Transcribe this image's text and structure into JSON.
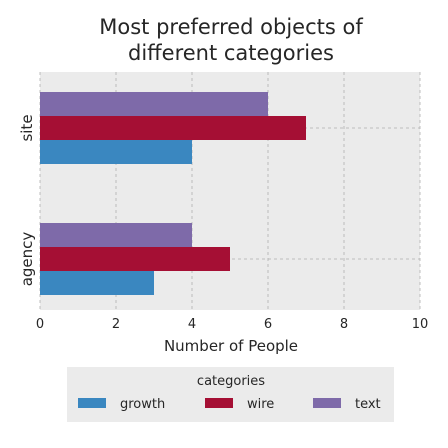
{
  "chart_data": {
    "type": "bar",
    "orientation": "horizontal",
    "title_lines": [
      "Most preferred objects of",
      "different categories"
    ],
    "xlabel": "Number of People",
    "ylabel": "",
    "categories": [
      "site",
      "agency"
    ],
    "series": [
      {
        "name": "growth",
        "color": "#3a87c0",
        "values": [
          4,
          3
        ]
      },
      {
        "name": "wire",
        "color": "#a50f34",
        "values": [
          7,
          5
        ]
      },
      {
        "name": "text",
        "color": "#7e6aa9",
        "values": [
          6,
          4
        ]
      }
    ],
    "xlim": [
      0,
      10
    ],
    "xticks": [
      "0",
      "2",
      "4",
      "6",
      "8",
      "10"
    ],
    "grid": true,
    "legend": {
      "title": "categories",
      "placement": "bottom"
    }
  }
}
